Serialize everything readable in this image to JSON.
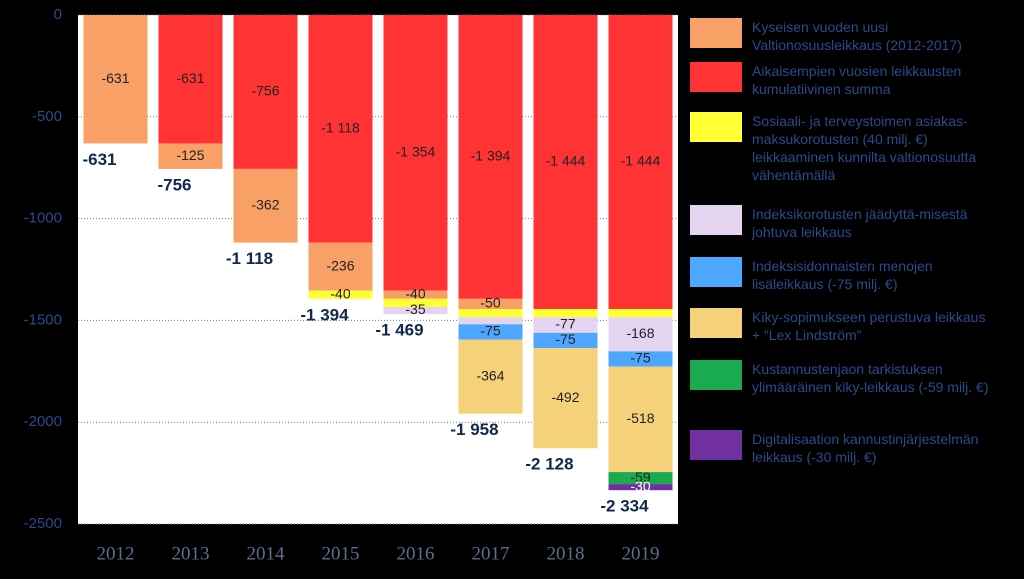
{
  "chart_data": {
    "type": "stacked_bar",
    "categories": [
      "2012",
      "2013",
      "2014",
      "2015",
      "2016",
      "2017",
      "2018",
      "2019"
    ],
    "ylim": [
      -2500,
      0
    ],
    "yticks": [
      0,
      -500,
      -1000,
      -1500,
      -2000,
      -2500
    ],
    "grid": true,
    "series": [
      {
        "name": "Aikaisempien vuosien leikkausten kumulatiivinen summa",
        "color": "#ff3333",
        "values": [
          null,
          -631,
          -756,
          -1118,
          -1354,
          -1394,
          -1444,
          -1444
        ],
        "value_labels": [
          null,
          "-631",
          "-756",
          "-1 118",
          "-1 354",
          "-1 394",
          "-1 444",
          "-1 444"
        ]
      },
      {
        "name": "Kyseisen vuoden uusi Valtionosuusleikkaus (2012-2017)",
        "color": "#f9a066",
        "values": [
          -631,
          -125,
          -362,
          -236,
          -40,
          -50,
          null,
          null
        ],
        "value_labels": [
          "-631",
          "-125",
          "-362",
          "-236",
          "-40",
          "-50",
          null,
          null
        ]
      },
      {
        "name": "Sosiaali- ja terveystoimen asiakas-maksukorotusten (40 milj. €) leikkaaminen kunnilta valtionosuutta vähentämällä",
        "color": "#ffff33",
        "values": [
          null,
          null,
          null,
          -40,
          -40,
          -40,
          -40,
          -40
        ],
        "value_labels": [
          null,
          null,
          null,
          "-40",
          null,
          null,
          null,
          null
        ]
      },
      {
        "name": "Indeksikorotusten jäädyttä-misestä johtuva leikkaus",
        "color": "#e4d4f0",
        "values": [
          null,
          null,
          null,
          null,
          -35,
          -35,
          -77,
          -168
        ],
        "value_labels": [
          null,
          null,
          null,
          null,
          "-35",
          null,
          "-77",
          "-168"
        ]
      },
      {
        "name": "Indeksisidonnaisten menojen lisäleikkaus (-75 milj. €)",
        "color": "#4da6ff",
        "values": [
          null,
          null,
          null,
          null,
          null,
          -75,
          -75,
          -75
        ],
        "value_labels": [
          null,
          null,
          null,
          null,
          null,
          "-75",
          "-75",
          "-75"
        ]
      },
      {
        "name": "Kiky-sopimukseen perustuva leikkaus + ”Lex Lindström”",
        "color": "#f5d27a",
        "values": [
          null,
          null,
          null,
          null,
          null,
          -364,
          -492,
          -518
        ],
        "value_labels": [
          null,
          null,
          null,
          null,
          null,
          "-364",
          "-492",
          "-518"
        ]
      },
      {
        "name": "Kustannustenjaon tarkistuksen ylimääräinen kiky-leikkaus (-59 milj. €)",
        "color": "#1aaa50",
        "values": [
          null,
          null,
          null,
          null,
          null,
          null,
          null,
          -59
        ],
        "value_labels": [
          null,
          null,
          null,
          null,
          null,
          null,
          null,
          "-59"
        ]
      },
      {
        "name": "Digitalisaation kannustinjärjestelmän leikkaus (-30 milj. €)",
        "color": "#7030a0",
        "values": [
          null,
          null,
          null,
          null,
          null,
          null,
          null,
          -30
        ],
        "value_labels": [
          null,
          null,
          null,
          null,
          null,
          null,
          null,
          "-30"
        ]
      }
    ],
    "totals": [
      -631,
      -756,
      -1118,
      -1394,
      -1469,
      -1958,
      -2128,
      -2334
    ],
    "total_labels": [
      "-631",
      "-756",
      "-1 118",
      "-1 394",
      "-1 469",
      "-1 958",
      "-2 128",
      "-2 334"
    ]
  }
}
